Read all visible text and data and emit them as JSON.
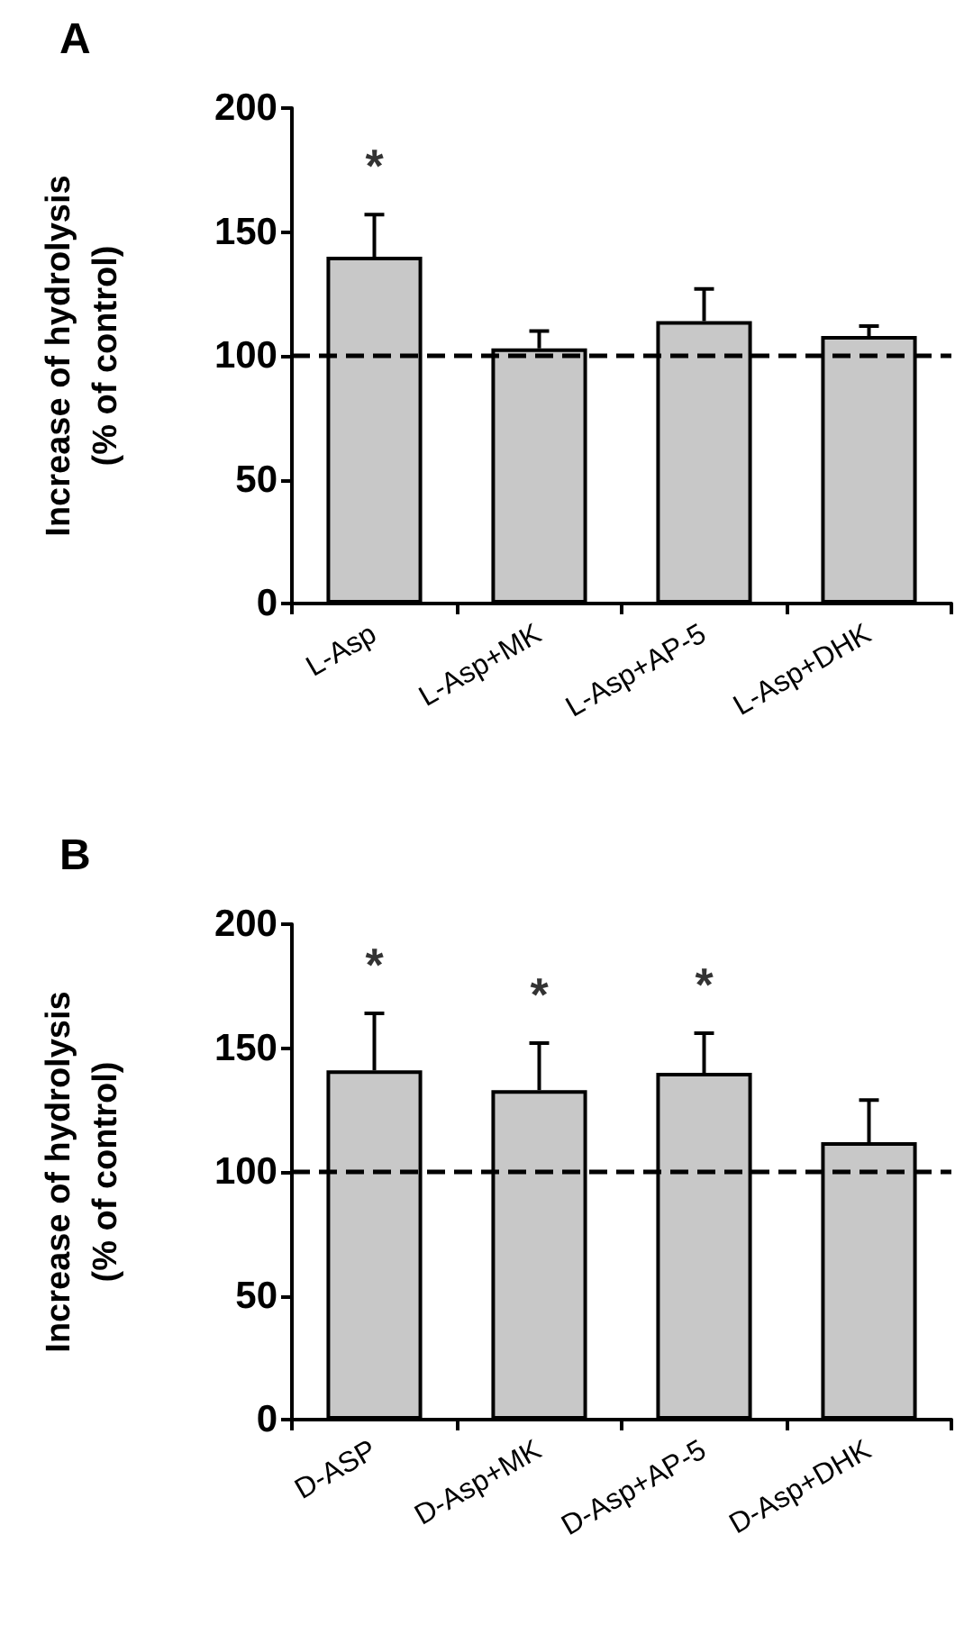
{
  "chart_data": [
    {
      "type": "bar",
      "title": "A",
      "ylabel": "Increase of hydrolysis\n(% of control)",
      "categories": [
        "L-Asp",
        "L-Asp+MK",
        "L-Asp+AP-5",
        "L-Asp+DHK"
      ],
      "values": [
        140,
        103,
        114,
        108
      ],
      "errors": [
        [
          140,
          157
        ],
        [
          103,
          110
        ],
        [
          114,
          127
        ],
        [
          108,
          112
        ]
      ],
      "color": "#c8c8c8",
      "ylim": [
        0,
        200
      ],
      "yticks": [
        0,
        50,
        100,
        150,
        200
      ],
      "grid": false,
      "ref_lines": [
        {
          "axis": "y",
          "value": 100,
          "color": "#000000",
          "line_style": "dashed"
        }
      ],
      "annotations": [
        {
          "text": "*",
          "x": "L-Asp",
          "y": 157
        }
      ]
    },
    {
      "type": "bar",
      "title": "B",
      "ylabel": "Increase of hydrolysis\n(% of control)",
      "categories": [
        "D-ASP",
        "D-Asp+MK",
        "D-Asp+AP-5",
        "D-Asp+DHK"
      ],
      "values": [
        141,
        133,
        140,
        112
      ],
      "errors": [
        [
          141,
          164
        ],
        [
          133,
          152
        ],
        [
          140,
          156
        ],
        [
          112,
          129
        ]
      ],
      "color": "#c8c8c8",
      "ylim": [
        0,
        200
      ],
      "yticks": [
        0,
        50,
        100,
        150,
        200
      ],
      "grid": false,
      "ref_lines": [
        {
          "axis": "y",
          "value": 100,
          "color": "#000000",
          "line_style": "dashed"
        }
      ],
      "annotations": [
        {
          "text": "*",
          "x": "D-ASP",
          "y": 164
        },
        {
          "text": "*",
          "x": "D-Asp+MK",
          "y": 152
        },
        {
          "text": "*",
          "x": "D-Asp+AP-5",
          "y": 156
        }
      ]
    }
  ]
}
